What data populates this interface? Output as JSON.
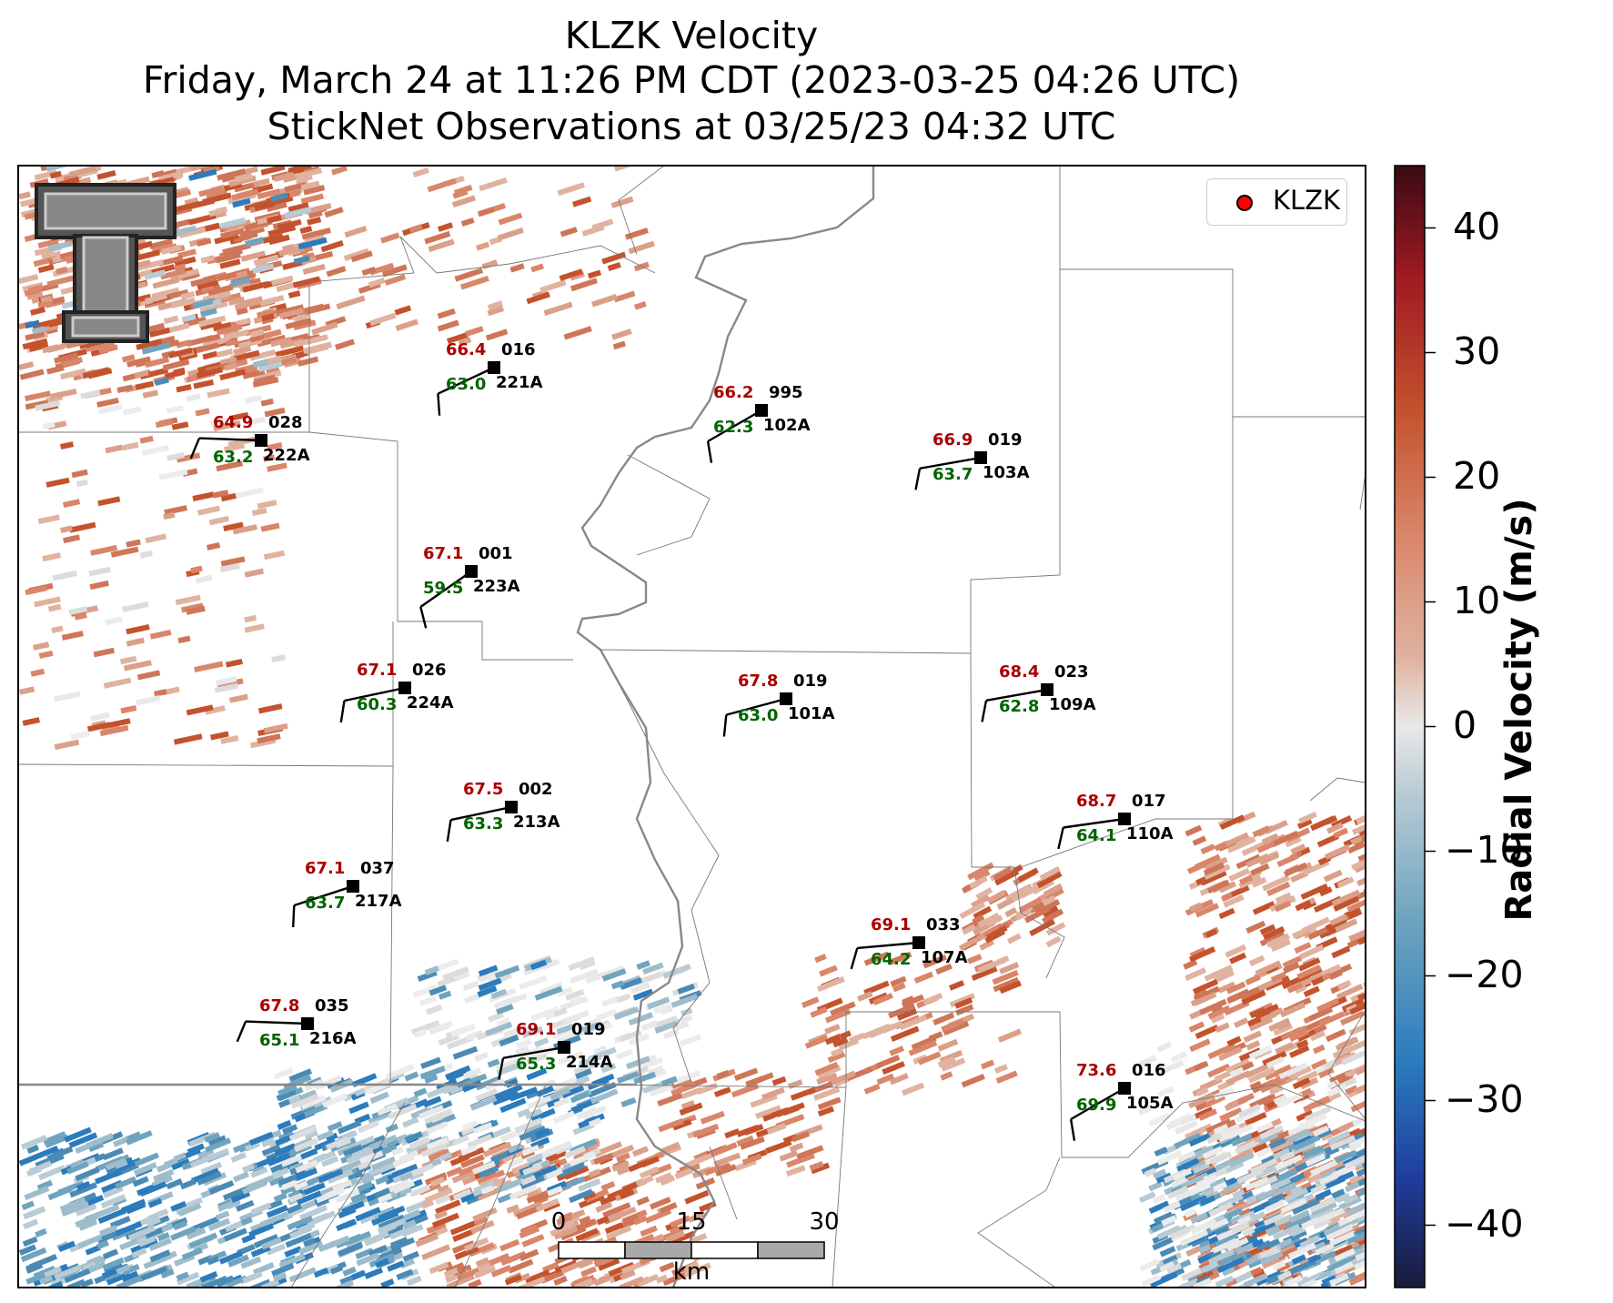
{
  "title": {
    "line1": "KLZK Velocity",
    "line2": "Friday, March 24 at 11:26 PM CDT (2023-03-25 04:26 UTC)",
    "line3": "StickNet Observations at 03/25/23 04:32 UTC"
  },
  "legend": {
    "label": "KLZK",
    "marker_color": "#ff0000"
  },
  "colorbar": {
    "label": "Radial Velocity (m/s)",
    "ticks": [
      "40",
      "30",
      "20",
      "10",
      "0",
      "−10",
      "−20",
      "−30",
      "−40"
    ],
    "range": [
      -45,
      45
    ],
    "colors": [
      "#1a1a3a",
      "#1f3f9e",
      "#2b7bbd",
      "#6fa4bf",
      "#b9cbd4",
      "#e8e8e8",
      "#e0b3a0",
      "#d9866a",
      "#c4532d",
      "#a01a22",
      "#3a0a14"
    ]
  },
  "scale_bar": {
    "ticks": [
      "0",
      "15",
      "30"
    ],
    "unit": "km"
  },
  "logo": {
    "text": "TT"
  },
  "stations": [
    {
      "id": "221A",
      "temp": "66.4",
      "pressure": "016",
      "dewpoint": "63.0"
    },
    {
      "id": "222A",
      "temp": "64.9",
      "pressure": "028",
      "dewpoint": "63.2"
    },
    {
      "id": "102A",
      "temp": "66.2",
      "pressure": "995",
      "dewpoint": "62.3"
    },
    {
      "id": "103A",
      "temp": "66.9",
      "pressure": "019",
      "dewpoint": "63.7"
    },
    {
      "id": "223A",
      "temp": "67.1",
      "pressure": "001",
      "dewpoint": "59.5"
    },
    {
      "id": "224A",
      "temp": "67.1",
      "pressure": "026",
      "dewpoint": "60.3"
    },
    {
      "id": "101A",
      "temp": "67.8",
      "pressure": "019",
      "dewpoint": "63.0"
    },
    {
      "id": "109A",
      "temp": "68.4",
      "pressure": "023",
      "dewpoint": "62.8"
    },
    {
      "id": "213A",
      "temp": "67.5",
      "pressure": "002",
      "dewpoint": "63.3"
    },
    {
      "id": "110A",
      "temp": "68.7",
      "pressure": "017",
      "dewpoint": "64.1"
    },
    {
      "id": "217A",
      "temp": "67.1",
      "pressure": "037",
      "dewpoint": "63.7"
    },
    {
      "id": "107A",
      "temp": "69.1",
      "pressure": "033",
      "dewpoint": "64.2"
    },
    {
      "id": "216A",
      "temp": "67.8",
      "pressure": "035",
      "dewpoint": "65.1"
    },
    {
      "id": "214A",
      "temp": "69.1",
      "pressure": "019",
      "dewpoint": "65.3"
    },
    {
      "id": "105A",
      "temp": "73.6",
      "pressure": "016",
      "dewpoint": "69.9"
    }
  ]
}
